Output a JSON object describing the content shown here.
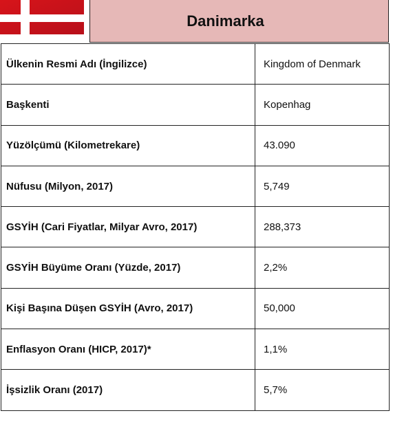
{
  "header": {
    "title": "Danimarka"
  },
  "table": {
    "rows": [
      [
        "Ülkenin Resmi Adı (İngilizce)",
        "Kingdom of Denmark"
      ],
      [
        "Başkenti",
        "Kopenhag"
      ],
      [
        "Yüzölçümü (Kilometrekare)",
        "43.090"
      ],
      [
        "Nüfusu (Milyon, 2017)",
        "5,749"
      ],
      [
        "GSYİH (Cari Fiyatlar, Milyar Avro, 2017)",
        "288,373"
      ],
      [
        "GSYİH Büyüme Oranı (Yüzde, 2017)",
        "2,2%"
      ],
      [
        "Kişi Başına Düşen GSYİH (Avro, 2017)",
        "50,000"
      ],
      [
        "Enflasyon Oranı (HICP, 2017)*",
        "1,1%"
      ],
      [
        "İşsizlik Oranı (2017)",
        "5,7%"
      ]
    ]
  }
}
